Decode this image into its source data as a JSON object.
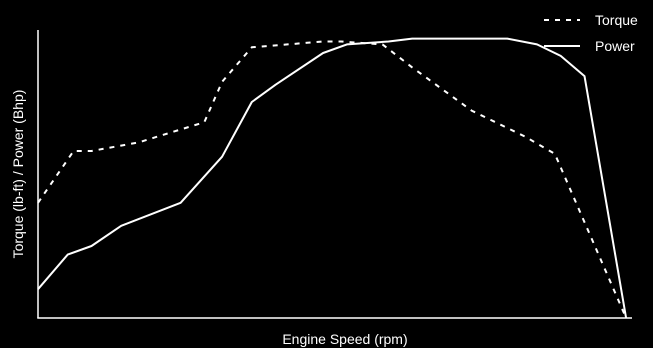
{
  "chart_data": {
    "type": "line",
    "title": "",
    "xlabel": "Engine Speed (rpm)",
    "ylabel": "Torque (lb-ft) / Power (Bhp)",
    "xlim": [
      0,
      100
    ],
    "ylim": [
      0,
      100
    ],
    "grid": false,
    "legend_position": "top-right",
    "series": [
      {
        "name": "Torque",
        "style": "dashed",
        "color": "#ffffff",
        "x": [
          0,
          6,
          9,
          17,
          28,
          31,
          36,
          48,
          51,
          58,
          63,
          73,
          82,
          87,
          99
        ],
        "y": [
          40,
          58,
          58,
          61,
          68,
          82,
          94,
          96,
          96,
          95,
          87,
          72,
          63,
          57,
          0
        ],
        "points": [
          [
            0,
            40
          ],
          [
            6,
            58
          ],
          [
            9,
            58
          ],
          [
            17,
            61
          ],
          [
            28,
            68
          ],
          [
            31,
            82
          ],
          [
            36,
            94
          ],
          [
            48,
            96
          ],
          [
            51,
            96
          ],
          [
            58,
            95
          ],
          [
            63,
            87
          ],
          [
            73,
            72
          ],
          [
            82,
            63
          ],
          [
            87,
            57
          ],
          [
            99,
            0
          ]
        ]
      },
      {
        "name": "Power",
        "style": "solid",
        "color": "#ffffff",
        "x": [
          0,
          5,
          9,
          14,
          24,
          31,
          36,
          40,
          48,
          52,
          59,
          63,
          75,
          79,
          84,
          88,
          92,
          99
        ],
        "y": [
          10,
          22,
          25,
          32,
          40,
          56,
          75,
          81,
          92,
          95,
          96,
          97,
          97,
          97,
          95,
          91,
          84,
          0
        ],
        "points": [
          [
            0,
            10
          ],
          [
            5,
            22
          ],
          [
            9,
            25
          ],
          [
            14,
            32
          ],
          [
            24,
            40
          ],
          [
            31,
            56
          ],
          [
            36,
            75
          ],
          [
            40,
            81
          ],
          [
            48,
            92
          ],
          [
            52,
            95
          ],
          [
            59,
            96
          ],
          [
            63,
            97
          ],
          [
            75,
            97
          ],
          [
            79,
            97
          ],
          [
            84,
            95
          ],
          [
            88,
            91
          ],
          [
            92,
            84
          ],
          [
            99,
            0
          ]
        ]
      }
    ]
  }
}
